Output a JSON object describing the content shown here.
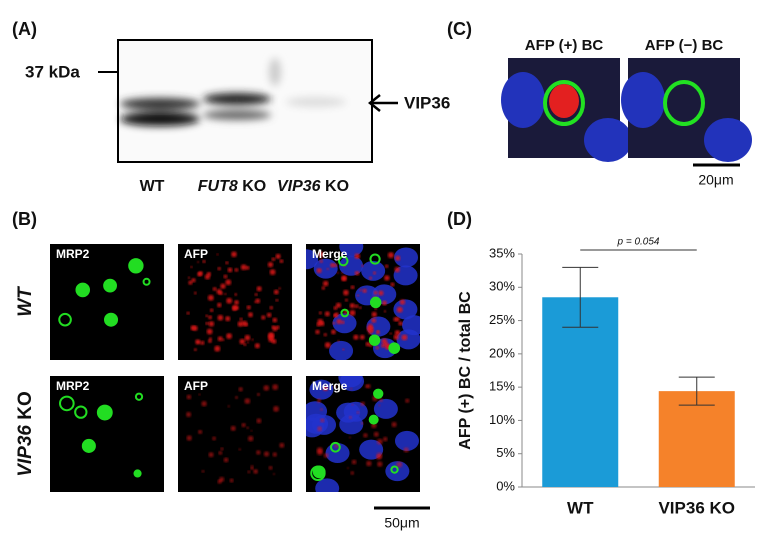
{
  "panel_a": {
    "label": "(A)",
    "marker": "37 kDa",
    "arrow_label": "VIP36",
    "lanes": [
      {
        "rest": "WT"
      },
      {
        "gene": "FUT8",
        "rest": "KO"
      },
      {
        "gene": "VIP36",
        "rest": "KO"
      }
    ]
  },
  "panel_b": {
    "label": "(B)",
    "rows": [
      {
        "gene": "WT"
      },
      {
        "gene": "VIP36",
        "rest": "KO"
      }
    ],
    "channels": [
      "MRP2",
      "AFP",
      "Merge"
    ],
    "scale": "50μm"
  },
  "panel_c": {
    "label": "(C)",
    "images": [
      "AFP (+) BC",
      "AFP (−) BC"
    ],
    "scale": "20μm"
  },
  "panel_d": {
    "label": "(D)"
  },
  "chart_data": {
    "type": "bar",
    "ylabel": "AFP (+) BC / total BC",
    "annotation": "p = 0.054",
    "categories": [
      "WT",
      "VIP36 KO"
    ],
    "series": [
      {
        "values": [
          28.5,
          14.4
        ],
        "errors": [
          4.5,
          2.1
        ],
        "colors": [
          "#1b9bd7",
          "#f5822a"
        ]
      }
    ],
    "ylim": [
      0,
      35
    ],
    "yticks": [
      {
        "value": 0,
        "label": "0%"
      },
      {
        "value": 5,
        "label": "5%"
      },
      {
        "value": 10,
        "label": "10%"
      },
      {
        "value": 15,
        "label": "15%"
      },
      {
        "value": 20,
        "label": "20%"
      },
      {
        "value": 25,
        "label": "25%"
      },
      {
        "value": 30,
        "label": "30%"
      },
      {
        "value": 35,
        "label": "35%"
      }
    ],
    "grid": false
  }
}
